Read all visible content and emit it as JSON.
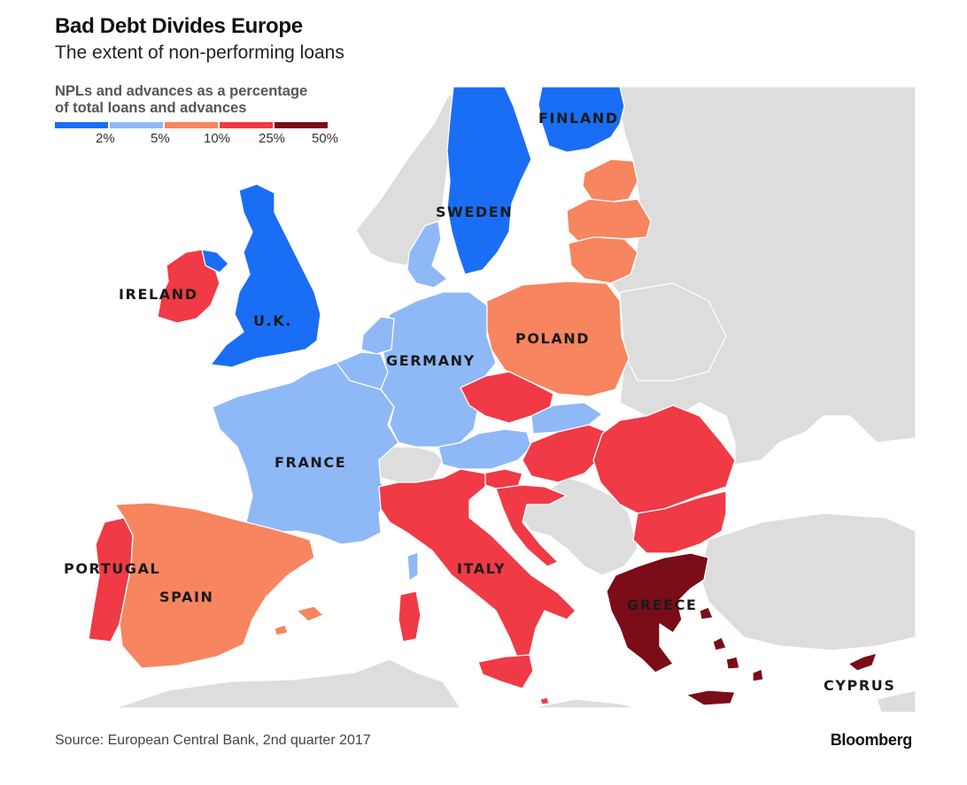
{
  "title": "Bad Debt Divides Europe",
  "subtitle": "The extent of non-performing loans",
  "legend": {
    "title_line1": "NPLs and advances as a percentage",
    "title_line2": "of total loans and advances",
    "ticks": [
      "2%",
      "5%",
      "10%",
      "25%",
      "50%"
    ],
    "colors": [
      "#1a6ef5",
      "#8fb8f7",
      "#f7855f",
      "#f03a45",
      "#7a0d17"
    ]
  },
  "colors": {
    "non_data": "#dddddd",
    "sea": "#ffffff",
    "border": "#ffffff"
  },
  "countries": {
    "finland": "FINLAND",
    "sweden": "SWEDEN",
    "ireland": "IRELAND",
    "uk": "U.K.",
    "germany": "GERMANY",
    "poland": "POLAND",
    "france": "FRANCE",
    "portugal": "PORTUGAL",
    "spain": "SPAIN",
    "italy": "ITALY",
    "greece": "GREECE",
    "cyprus": "CYPRUS"
  },
  "source": "Source: European Central Bank, 2nd quarter 2017",
  "brand": "Bloomberg"
}
